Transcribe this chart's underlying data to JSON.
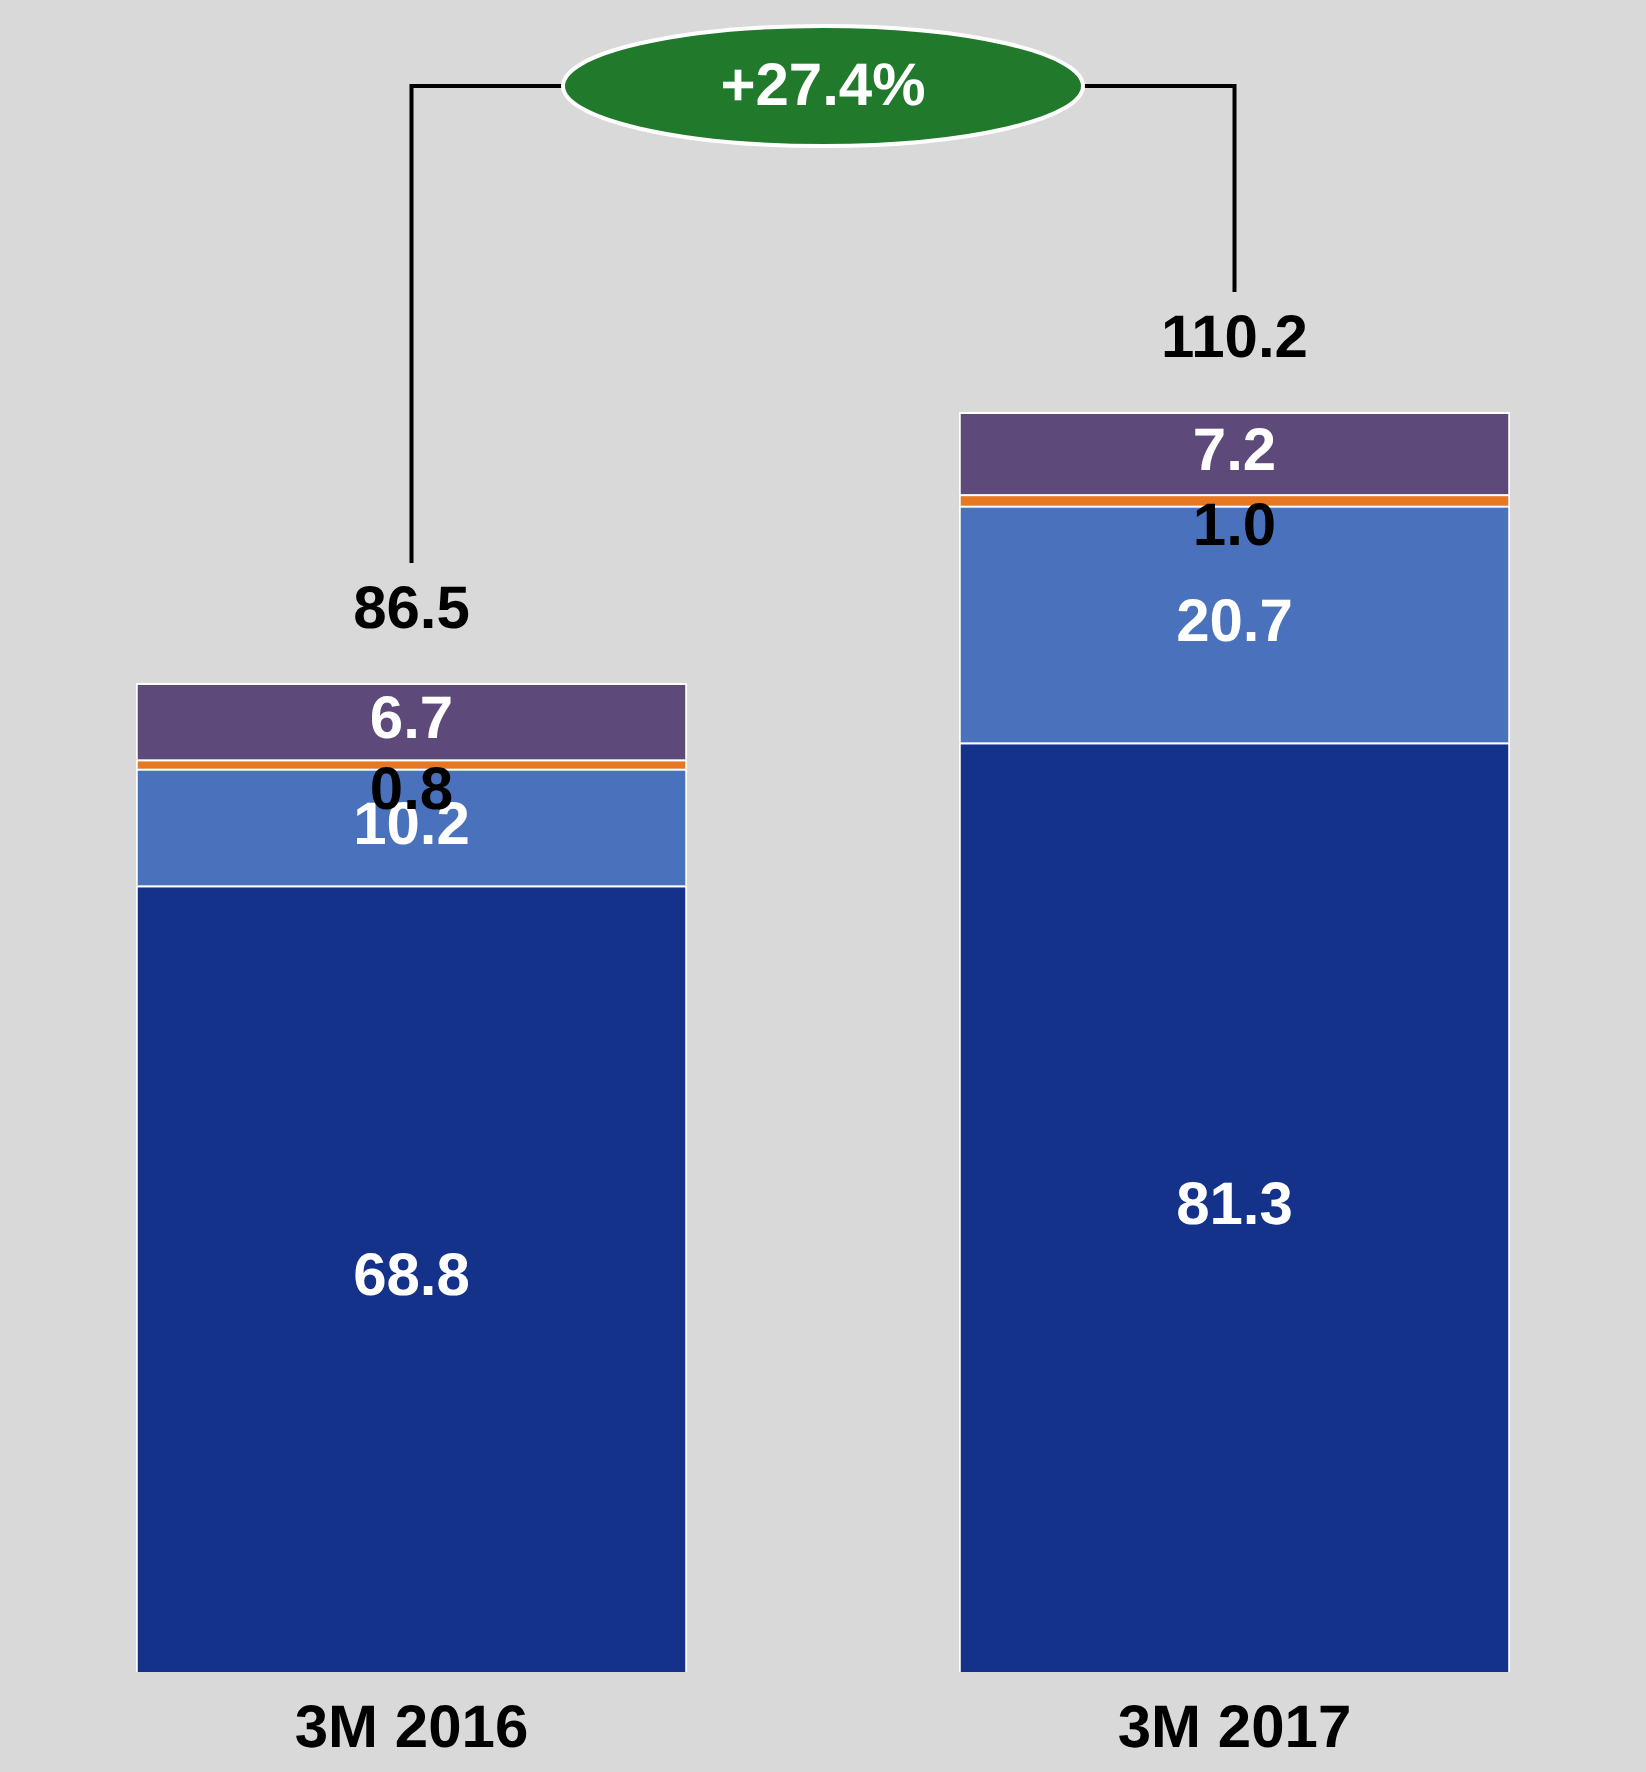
{
  "chart_data": {
    "type": "bar",
    "stacked": true,
    "categories": [
      "3M 2016",
      "3M 2017"
    ],
    "series": [
      {
        "color": "#14328a",
        "values": [
          68.8,
          81.3
        ],
        "value_labels": [
          "68.8",
          "81.3"
        ]
      },
      {
        "color": "#4a72bc",
        "values": [
          10.2,
          20.7
        ],
        "value_labels": [
          "10.2",
          "20.7"
        ]
      },
      {
        "color": "#e87722",
        "values": [
          0.8,
          1.0
        ],
        "value_labels": [
          "0.8",
          "1.0"
        ]
      },
      {
        "color": "#5e4a7a",
        "values": [
          6.7,
          7.2
        ],
        "value_labels": [
          "6.7",
          "7.2"
        ]
      }
    ],
    "totals": [
      "86.5",
      "110.2"
    ],
    "annotations": [
      "+27.4%"
    ]
  }
}
